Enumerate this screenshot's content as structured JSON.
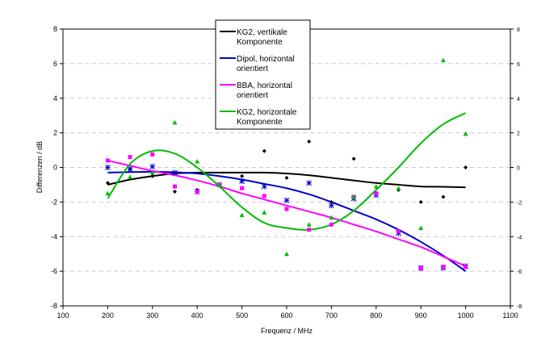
{
  "chart_data": {
    "type": "scatter",
    "xlabel": "Frequenz / MHz",
    "ylabel": "Differenzen / dB",
    "xlim": [
      100,
      1100
    ],
    "ylim": [
      -8,
      8
    ],
    "xticks": [
      100,
      200,
      300,
      400,
      500,
      600,
      700,
      800,
      900,
      1000,
      1100
    ],
    "yticks": [
      -8,
      -6,
      -4,
      -2,
      0,
      2,
      4,
      6,
      8
    ],
    "grid": "horizontal dashed",
    "legend_position": "top-center",
    "x": [
      200,
      250,
      300,
      350,
      400,
      450,
      500,
      550,
      600,
      650,
      700,
      750,
      800,
      850,
      900,
      950,
      1000
    ],
    "series": [
      {
        "name": "KG2, vertikale Komponente",
        "color": "#000000",
        "marker": "diamond",
        "values": [
          -0.9,
          -0.1,
          -0.5,
          -1.4,
          -1.3,
          -1.0,
          -0.5,
          0.95,
          -0.6,
          1.5,
          -2.0,
          0.5,
          -1.5,
          -1.3,
          -2.0,
          -1.7,
          0
        ],
        "fit": [
          -1.0,
          -0.7,
          -0.5,
          -0.35,
          -0.3,
          -0.3,
          -0.3,
          -0.3,
          -0.35,
          -0.45,
          -0.6,
          -0.75,
          -0.9,
          -1.0,
          -1.1,
          -1.12,
          -1.15
        ]
      },
      {
        "name": "Dipol, horizontal orientiert",
        "color": "#0000cc",
        "marker": "star",
        "values": [
          0,
          -0.1,
          0.05,
          -0.3,
          -1.4,
          -1.0,
          -0.8,
          -1.1,
          -1.9,
          -0.9,
          -2.2,
          -1.8,
          -1.6,
          -3.8,
          -5.8,
          -5.8,
          -5.7
        ],
        "fit": [
          -0.3,
          -0.27,
          -0.25,
          -0.28,
          -0.35,
          -0.5,
          -0.7,
          -0.95,
          -1.2,
          -1.55,
          -2.0,
          -2.5,
          -3.0,
          -3.6,
          -4.3,
          -5.1,
          -6.0
        ]
      },
      {
        "name": "BBA, horizontal orientiert",
        "color": "#ff00ff",
        "marker": "square",
        "values": [
          0.4,
          0.6,
          0.75,
          -1.1,
          -1.4,
          -1.0,
          -1.2,
          -1.65,
          -2.4,
          -3.6,
          -3.3,
          -1.7,
          -1.5,
          -3.7,
          -5.85,
          -5.75,
          -5.75
        ],
        "fit": [
          0.4,
          0.1,
          -0.2,
          -0.45,
          -0.75,
          -1.1,
          -1.5,
          -1.85,
          -2.2,
          -2.55,
          -2.9,
          -3.3,
          -3.7,
          -4.15,
          -4.6,
          -5.15,
          -5.7
        ]
      },
      {
        "name": "KG2, horizontale Komponente",
        "color": "#00bb00",
        "marker": "triangle",
        "values": [
          -1.5,
          -0.55,
          -0.3,
          2.6,
          0.35,
          -1.0,
          -2.75,
          -2.6,
          -5.0,
          -3.3,
          -2.9,
          -1.7,
          -1.1,
          -1.2,
          -3.5,
          6.2,
          1.95
        ],
        "fit": [
          -1.8,
          0.2,
          0.95,
          0.8,
          0.0,
          -1.1,
          -2.3,
          -3.2,
          -3.5,
          -3.6,
          -3.3,
          -2.5,
          -1.3,
          0.0,
          1.4,
          2.5,
          3.15
        ]
      }
    ]
  }
}
